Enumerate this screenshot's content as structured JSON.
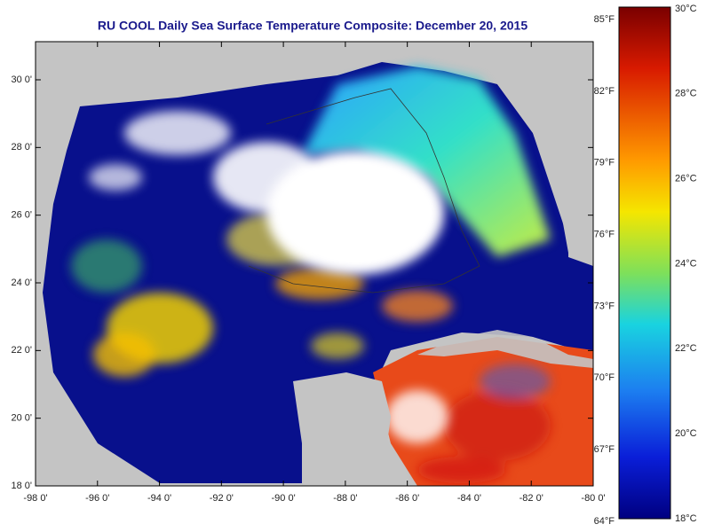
{
  "title": "RU COOL Daily Sea Surface Temperature Composite:  December 20, 2015",
  "map": {
    "lon_labels": [
      "-98 0'",
      "-96 0'",
      "-94 0'",
      "-92 0'",
      "-90 0'",
      "-88 0'",
      "-86 0'",
      "-84 0'",
      "-82 0'",
      "-80 0'"
    ],
    "lat_labels": [
      "30 0'",
      "28 0'",
      "26 0'",
      "24 0'",
      "22 0'",
      "20 0'",
      "18 0'"
    ]
  },
  "colorbar": {
    "fahrenheit": [
      "85°F",
      "82°F",
      "79°F",
      "76°F",
      "73°F",
      "70°F",
      "67°F",
      "64°F"
    ],
    "celsius": [
      "30°C",
      "28°C",
      "26°C",
      "24°C",
      "22°C",
      "20°C",
      "18°C"
    ]
  }
}
